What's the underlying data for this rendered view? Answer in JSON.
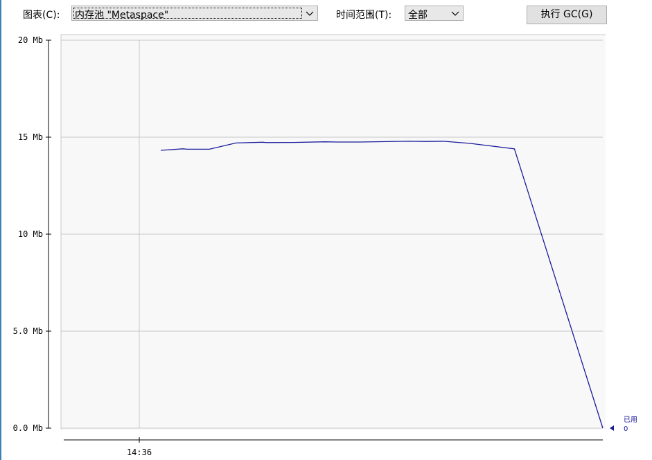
{
  "toolbar": {
    "chart_label": "图表(C):",
    "chart_value": "内存池 \"Metaspace\"",
    "time_label": "时间范围(T):",
    "time_value": "全部",
    "gc_button": "执行 GC(G)"
  },
  "legend": {
    "label": "已用",
    "value": "0",
    "color": "#1a1a9c"
  },
  "chart_data": {
    "type": "line",
    "title": "",
    "xlabel": "",
    "ylabel": "",
    "ylim": [
      0,
      20
    ],
    "y_ticks": [
      {
        "value": 20,
        "label": "20 Mb"
      },
      {
        "value": 15,
        "label": "15 Mb"
      },
      {
        "value": 10,
        "label": "10 Mb"
      },
      {
        "value": 5,
        "label": "5.0 Mb"
      },
      {
        "value": 0,
        "label": "0.0 Mb"
      }
    ],
    "x_tick_label": "14:36",
    "grid": true,
    "series": [
      {
        "name": "已用",
        "color": "#1a1a9c",
        "points": [
          [
            0.0,
            14.32
          ],
          [
            0.05,
            14.4
          ],
          [
            0.06,
            14.38
          ],
          [
            0.11,
            14.38
          ],
          [
            0.17,
            14.7
          ],
          [
            0.23,
            14.74
          ],
          [
            0.24,
            14.72
          ],
          [
            0.3,
            14.73
          ],
          [
            0.37,
            14.76
          ],
          [
            0.4,
            14.75
          ],
          [
            0.45,
            14.75
          ],
          [
            0.56,
            14.79
          ],
          [
            0.6,
            14.78
          ],
          [
            0.64,
            14.79
          ],
          [
            0.7,
            14.68
          ],
          [
            0.8,
            14.4
          ],
          [
            1.0,
            0.0
          ]
        ]
      }
    ]
  }
}
